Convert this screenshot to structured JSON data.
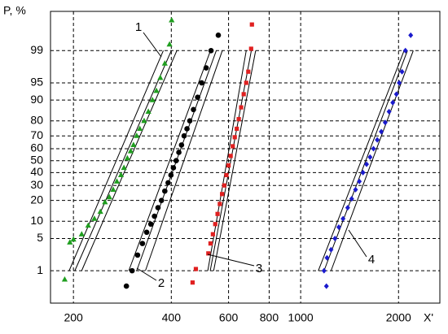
{
  "chart_data": {
    "type": "scatter",
    "y_label": "P, %",
    "x_label": "X'",
    "xscale": "log",
    "yscale": "probability",
    "grid": true,
    "xlim": [
      170,
      2680
    ],
    "ylim": [
      0.13,
      99.92
    ],
    "xticks": [
      200,
      400,
      600,
      800,
      1000,
      2000
    ],
    "yticks": [
      1,
      5,
      10,
      20,
      30,
      40,
      50,
      60,
      70,
      80,
      90,
      95,
      99
    ],
    "series": [
      {
        "color": "#1f9e1f",
        "marker": "triangle",
        "x": [
          188,
          195,
          200,
          212,
          222,
          232,
          242,
          250,
          258,
          265,
          272,
          280,
          286,
          293,
          300,
          306,
          313,
          320,
          330,
          340,
          350,
          360,
          370,
          382,
          395,
          401
        ],
        "values": [
          0.6,
          4.2,
          4.8,
          6,
          8.5,
          11,
          14,
          19,
          22,
          27,
          33,
          38,
          44,
          52,
          58,
          63,
          70,
          75,
          80,
          85,
          90,
          93,
          96,
          98,
          99.3,
          99.85
        ]
      },
      {
        "color": "#000000",
        "marker": "circle",
        "x": [
          291,
          303,
          315,
          326,
          336,
          346,
          355,
          364,
          373,
          382,
          391,
          399,
          406,
          414,
          422,
          430,
          438,
          447,
          456,
          468,
          482,
          496,
          512,
          530,
          558
        ],
        "values": [
          0.4,
          1,
          2.3,
          4,
          6.5,
          9,
          12,
          16,
          20,
          26,
          32,
          38,
          44,
          50,
          57,
          63,
          70,
          75,
          80,
          86,
          91,
          95,
          97.5,
          99,
          99.6
        ]
      },
      {
        "color": "#e02020",
        "marker": "square",
        "x": [
          465,
          476,
          520,
          528,
          537,
          546,
          555,
          564,
          573,
          582,
          591,
          600,
          609,
          618,
          627,
          636,
          645,
          656,
          668,
          680,
          690,
          704,
          708
        ],
        "values": [
          0.5,
          1.1,
          2.5,
          4,
          6,
          9,
          13,
          18,
          24,
          30,
          38,
          46,
          54,
          62,
          69,
          75,
          81,
          87,
          92,
          95,
          97,
          99.1,
          99.8
        ]
      },
      {
        "color": "#1a1acc",
        "marker": "diamond",
        "x": [
          1200,
          1180,
          1205,
          1240,
          1275,
          1310,
          1350,
          1395,
          1435,
          1475,
          1515,
          1555,
          1595,
          1635,
          1675,
          1720,
          1770,
          1820,
          1870,
          1920,
          1970,
          2010,
          2050,
          2100,
          2180
        ],
        "values": [
          0.4,
          1,
          2,
          3,
          5,
          8,
          11,
          16,
          21,
          27,
          33,
          40,
          47,
          53,
          60,
          67,
          73,
          79,
          85,
          89,
          92,
          95,
          97,
          99,
          99.6
        ]
      }
    ],
    "lines": [
      {
        "color": "#000000",
        "x": [
          194,
          378
        ],
        "values": [
          1,
          99
        ]
      },
      {
        "color": "#000000",
        "x": [
          202,
          400
        ],
        "values": [
          1,
          99
        ]
      },
      {
        "color": "#000000",
        "x": [
          212,
          416
        ],
        "values": [
          1,
          99
        ]
      },
      {
        "color": "#000000",
        "x": [
          296,
          528
        ],
        "values": [
          1,
          99
        ]
      },
      {
        "color": "#000000",
        "x": [
          313,
          550
        ],
        "values": [
          1,
          99
        ]
      },
      {
        "color": "#000000",
        "x": [
          333,
          574
        ],
        "values": [
          1,
          99
        ]
      },
      {
        "color": "#000000",
        "x": [
          518,
          680
        ],
        "values": [
          1,
          99
        ]
      },
      {
        "color": "#000000",
        "x": [
          527,
          705
        ],
        "values": [
          1,
          99
        ]
      },
      {
        "color": "#000000",
        "x": [
          540,
          727
        ],
        "values": [
          1,
          99
        ]
      },
      {
        "color": "#000000",
        "x": [
          1133,
          2080
        ],
        "values": [
          1,
          99
        ]
      },
      {
        "color": "#000000",
        "x": [
          1180,
          2130
        ],
        "values": [
          1,
          99
        ]
      },
      {
        "color": "#000000",
        "x": [
          1240,
          2220
        ],
        "values": [
          1,
          99
        ]
      }
    ],
    "annotations": [
      "1",
      "2",
      "3",
      "4"
    ]
  }
}
